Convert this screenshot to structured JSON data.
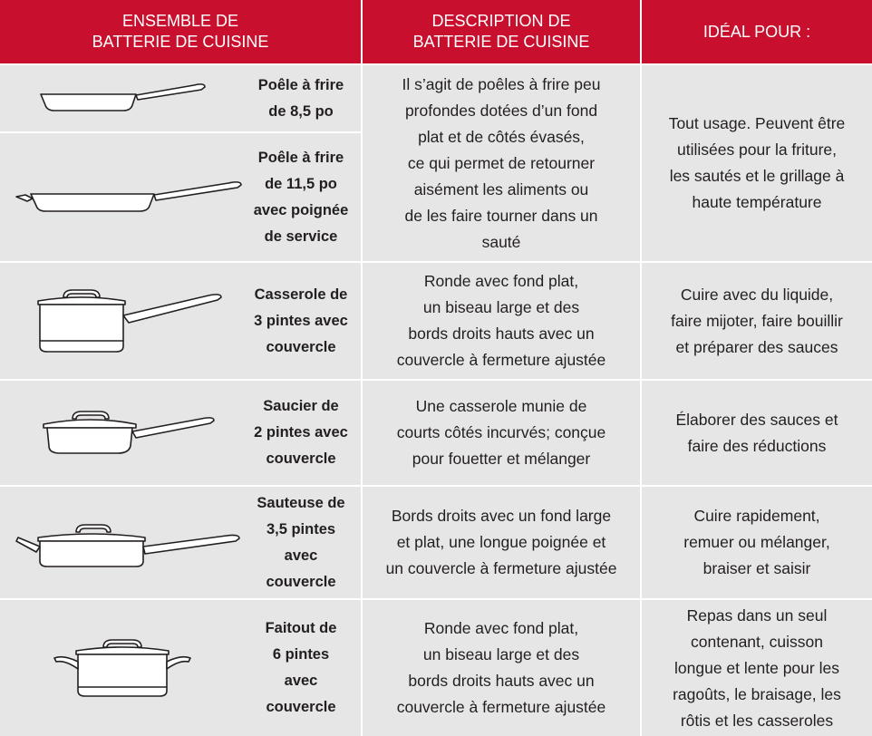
{
  "header": [
    [
      "ENSEMBLE DE",
      "BATTERIE DE CUISINE"
    ],
    [
      "DESCRIPTION DE",
      "BATTERIE DE CUISINE"
    ],
    [
      "IDÉAL POUR :"
    ]
  ],
  "rows": [
    {
      "items": [
        {
          "name": [
            "Poêle à frire",
            "de 8,5 po"
          ]
        },
        {
          "name": [
            "Poêle à frire",
            "de 11,5 po",
            "avec poignée",
            "de service"
          ]
        }
      ],
      "description": [
        "Il s’agit de poêles à frire peu",
        "profondes dotées d’un fond",
        "plat et de côtés évasés,",
        "ce qui permet de retourner",
        "aisément les aliments ou",
        "de les faire tourner dans un",
        "sauté"
      ],
      "ideal": [
        "Tout usage. Peuvent être",
        "utilisées pour la friture,",
        "les sautés et le grillage à",
        "haute température"
      ]
    },
    {
      "items": [
        {
          "name": [
            "Casserole de",
            "3 pintes avec",
            "couvercle"
          ]
        }
      ],
      "description": [
        "Ronde avec fond plat,",
        "un biseau large et des",
        "bords droits hauts avec un",
        "couvercle à fermeture ajustée"
      ],
      "ideal": [
        "Cuire avec du liquide,",
        "faire mijoter, faire bouillir",
        "et préparer des sauces"
      ]
    },
    {
      "items": [
        {
          "name": [
            "Saucier de",
            "2 pintes avec",
            "couvercle"
          ]
        }
      ],
      "description": [
        "Une casserole munie de",
        "courts côtés incurvés; conçue",
        "pour fouetter et mélanger"
      ],
      "ideal": [
        "Élaborer des sauces et",
        "faire des réductions"
      ]
    },
    {
      "items": [
        {
          "name": [
            "Sauteuse de",
            "3,5 pintes",
            "avec",
            "couvercle"
          ]
        }
      ],
      "description": [
        "Bords droits avec un fond large",
        "et plat, une longue poignée et",
        "un couvercle à fermeture ajustée"
      ],
      "ideal": [
        "Cuire rapidement,",
        "remuer ou mélanger,",
        "braiser et saisir"
      ]
    },
    {
      "items": [
        {
          "name": [
            "Faitout de",
            "6 pintes",
            "avec",
            "couvercle"
          ]
        }
      ],
      "description": [
        "Ronde avec fond plat,",
        "un biseau large et des",
        "bords droits hauts avec un",
        "couvercle à fermeture ajustée"
      ],
      "ideal": [
        "Repas dans un seul",
        "contenant, cuisson",
        "longue et lente pour les",
        "ragoûts, le braisage, les",
        "rôtis et les casseroles"
      ]
    }
  ]
}
